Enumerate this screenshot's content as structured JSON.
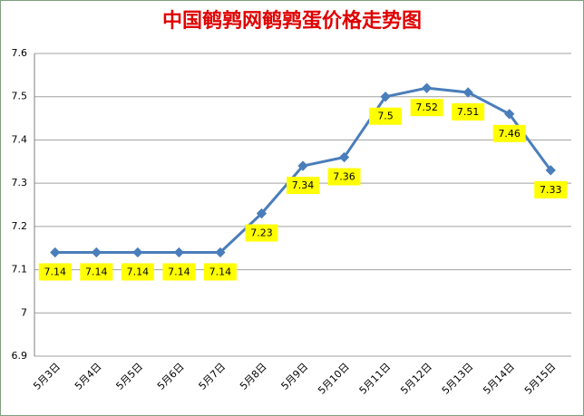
{
  "chart_data": {
    "type": "line",
    "title": "中国鹌鹑网鹌鹑蛋价格走势图",
    "categories": [
      "5月3日",
      "5月4日",
      "5月5日",
      "5月6日",
      "5月7日",
      "5月8日",
      "5月9日",
      "5月10日",
      "5月11日",
      "5月12日",
      "5月13日",
      "5月14日",
      "5月15日"
    ],
    "values": [
      7.14,
      7.14,
      7.14,
      7.14,
      7.14,
      7.23,
      7.34,
      7.36,
      7.5,
      7.52,
      7.51,
      7.46,
      7.33
    ],
    "color": "#4a7ebb",
    "label_color": "#ffff00",
    "ylim": [
      6.9,
      7.6
    ],
    "yticks": [
      6.9,
      7,
      7.1,
      7.2,
      7.3,
      7.4,
      7.5,
      7.6
    ],
    "grid": true
  }
}
